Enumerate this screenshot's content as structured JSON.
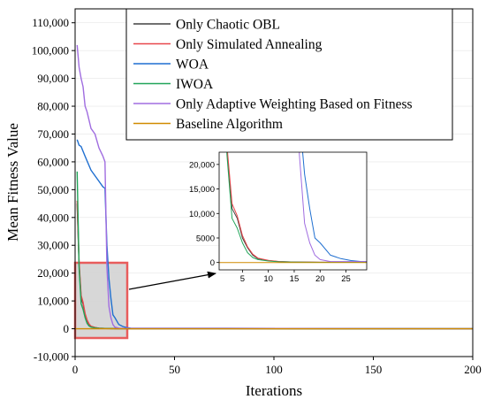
{
  "chart_data": [
    {
      "type": "line",
      "xlabel": "Iterations",
      "ylabel": "Mean Fitness Value",
      "xlim": [
        0,
        200
      ],
      "ylim": [
        -10000,
        115000
      ],
      "xticks": [
        0,
        50,
        100,
        150,
        200
      ],
      "yticks": [
        -10000,
        0,
        10000,
        20000,
        30000,
        40000,
        50000,
        60000,
        70000,
        80000,
        90000,
        100000,
        110000
      ],
      "xtick_labels": [
        "0",
        "50",
        "100",
        "150",
        "200"
      ],
      "ytick_labels": [
        "-10,000",
        "0",
        "10,000",
        "20,000",
        "30,000",
        "40,000",
        "50,000",
        "60,000",
        "70,000",
        "80,000",
        "90,000",
        "100,000",
        "110,000"
      ],
      "legend_position": "top-right",
      "series": [
        {
          "name": "Only Chaotic OBL",
          "color": "#404040",
          "x": [
            1,
            2,
            3,
            4,
            5,
            6,
            7,
            8,
            10,
            12,
            15,
            20,
            200
          ],
          "y": [
            45000,
            23000,
            11000,
            9000,
            5000,
            3000,
            1500,
            800,
            400,
            200,
            100,
            50,
            0
          ]
        },
        {
          "name": "Only Simulated Annealing",
          "color": "#e8474b",
          "x": [
            1,
            2,
            3,
            4,
            5,
            6,
            7,
            8,
            10,
            12,
            15,
            20,
            200
          ],
          "y": [
            46000,
            24000,
            12000,
            9500,
            5500,
            3200,
            1700,
            900,
            450,
            220,
            110,
            50,
            0
          ]
        },
        {
          "name": "WOA",
          "color": "#1f6fd0",
          "x": [
            1,
            2,
            3,
            5,
            8,
            10,
            12,
            14,
            15,
            16,
            17,
            18,
            19,
            20,
            22,
            24,
            26,
            28,
            200
          ],
          "y": [
            68000,
            66000,
            65500,
            62000,
            57000,
            55000,
            53000,
            51000,
            50500,
            30000,
            18000,
            11000,
            5000,
            4000,
            1500,
            800,
            400,
            200,
            0
          ]
        },
        {
          "name": "IWOA",
          "color": "#21a559",
          "x": [
            1,
            2,
            3,
            4,
            5,
            6,
            7,
            8,
            10,
            12,
            15,
            20,
            200
          ],
          "y": [
            56500,
            22000,
            9000,
            7000,
            4000,
            2000,
            1000,
            600,
            300,
            150,
            80,
            40,
            0
          ]
        },
        {
          "name": "Only Adaptive Weighting Based on Fitness",
          "color": "#a06de0",
          "x": [
            1,
            2,
            3,
            4,
            5,
            6,
            8,
            10,
            12,
            14,
            15,
            16,
            17,
            18,
            19,
            20,
            22,
            200
          ],
          "y": [
            102000,
            94000,
            90000,
            87000,
            80000,
            78000,
            72000,
            70000,
            65000,
            62000,
            60000,
            22000,
            8000,
            4000,
            1500,
            600,
            200,
            0
          ]
        },
        {
          "name": "Baseline Algorithm",
          "color": "#d08a00",
          "x": [
            0,
            200
          ],
          "y": [
            0,
            0
          ]
        }
      ]
    },
    {
      "type": "line",
      "xlim": [
        0.5,
        29
      ],
      "ylim": [
        -1500,
        22500
      ],
      "xticks": [
        5,
        10,
        15,
        20,
        25
      ],
      "yticks": [
        0,
        5000,
        10000,
        15000,
        20000
      ],
      "xtick_labels": [
        "5",
        "10",
        "15",
        "20",
        "25"
      ],
      "ytick_labels": [
        "0",
        "5000",
        "10,000",
        "15,000",
        "20,000"
      ]
    }
  ],
  "colors": {
    "zoom_box_fill": "#d3d3d3",
    "zoom_box_stroke": "#e85c5c",
    "grid": "#e6e6e6"
  }
}
